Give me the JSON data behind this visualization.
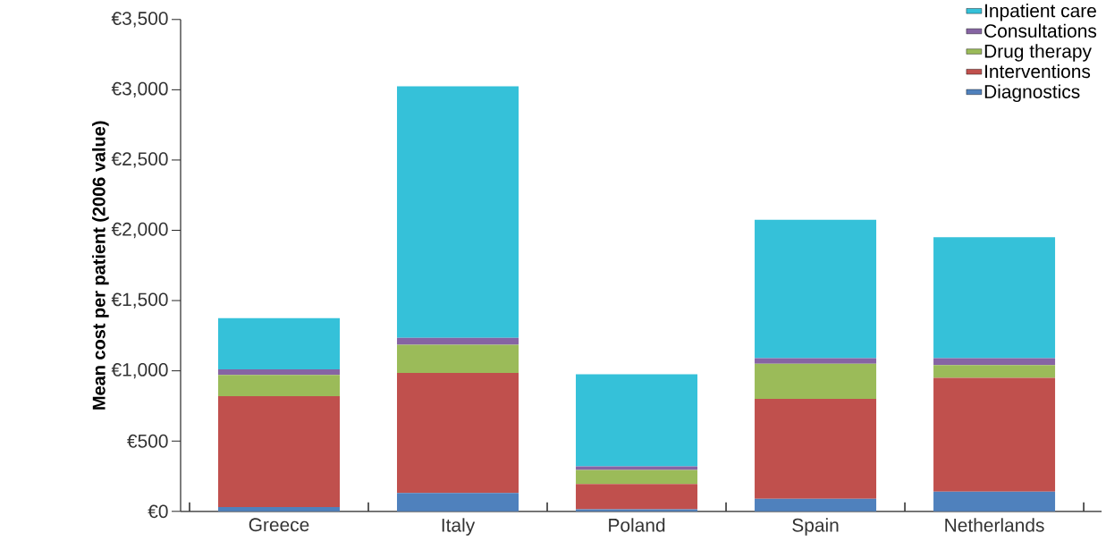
{
  "chart_data": {
    "type": "bar",
    "stacked": true,
    "ylabel": "Mean cost per patient  (2006 value)",
    "categories": [
      "Greece",
      "Italy",
      "Poland",
      "Spain",
      "Netherlands"
    ],
    "series": [
      {
        "name": "Diagnostics",
        "color": "#4f81bd",
        "values": [
          30,
          130,
          15,
          90,
          140
        ]
      },
      {
        "name": "Interventions",
        "color": "#c0504d",
        "values": [
          790,
          855,
          180,
          710,
          810
        ]
      },
      {
        "name": "Drug therapy",
        "color": "#9bbb59",
        "values": [
          150,
          200,
          100,
          250,
          90
        ]
      },
      {
        "name": "Consultations",
        "color": "#8664a3",
        "values": [
          40,
          50,
          25,
          40,
          50
        ]
      },
      {
        "name": "Inpatient care",
        "color": "#35c1d9",
        "values": [
          365,
          1790,
          655,
          985,
          860
        ]
      }
    ],
    "ylim": [
      0,
      3500
    ],
    "yticks": [
      {
        "value": 0,
        "label": "€0"
      },
      {
        "value": 500,
        "label": "€500"
      },
      {
        "value": 1000,
        "label": "€1,000"
      },
      {
        "value": 1500,
        "label": "€1,500"
      },
      {
        "value": 2000,
        "label": "€2,000"
      },
      {
        "value": 2500,
        "label": "€2,500"
      },
      {
        "value": 3000,
        "label": "€3,000"
      },
      {
        "value": 3500,
        "label": "€3,500"
      }
    ],
    "legend": "top right"
  }
}
